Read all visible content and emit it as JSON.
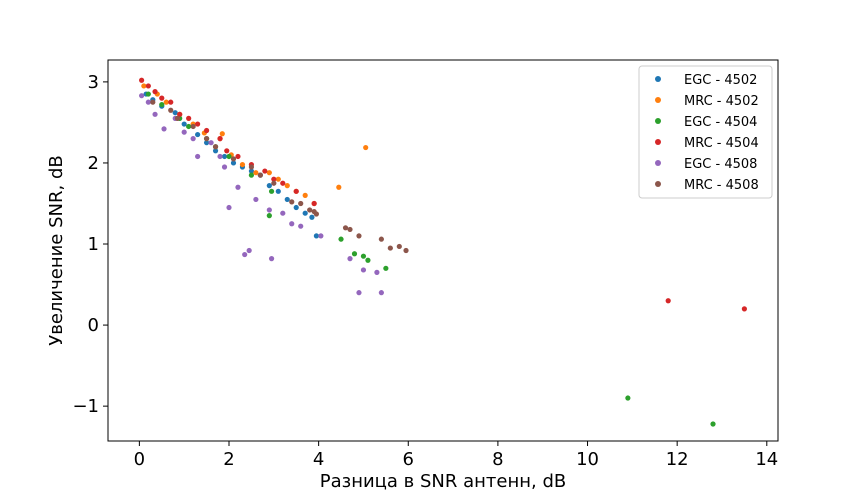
{
  "chart_data": {
    "type": "scatter",
    "title": "",
    "xlabel": "Разница в SNR антенн, dB",
    "ylabel": "Увеличение SNR, dB",
    "xlim": [
      -0.7,
      14.25
    ],
    "ylim": [
      -1.43,
      3.27
    ],
    "xticks": [
      0,
      2,
      4,
      6,
      8,
      10,
      12,
      14
    ],
    "yticks": [
      -1,
      0,
      1,
      2,
      3
    ],
    "grid": false,
    "legend_position": "top-right",
    "series": [
      {
        "name": "EGC - 4502",
        "color": "#1f77b4",
        "points": [
          [
            0.15,
            2.85
          ],
          [
            0.3,
            2.78
          ],
          [
            0.5,
            2.7
          ],
          [
            0.8,
            2.62
          ],
          [
            1.0,
            2.48
          ],
          [
            1.3,
            2.35
          ],
          [
            1.5,
            2.25
          ],
          [
            1.7,
            2.15
          ],
          [
            1.9,
            2.08
          ],
          [
            2.1,
            2.0
          ],
          [
            2.3,
            1.95
          ],
          [
            2.5,
            1.9
          ],
          [
            2.7,
            1.85
          ],
          [
            2.9,
            1.72
          ],
          [
            3.1,
            1.65
          ],
          [
            3.3,
            1.55
          ],
          [
            3.5,
            1.45
          ],
          [
            3.7,
            1.38
          ],
          [
            3.85,
            1.33
          ],
          [
            3.95,
            1.1
          ]
        ]
      },
      {
        "name": "MRC - 4502",
        "color": "#ff7f0e",
        "points": [
          [
            0.1,
            2.95
          ],
          [
            0.4,
            2.85
          ],
          [
            0.6,
            2.75
          ],
          [
            0.9,
            2.6
          ],
          [
            1.2,
            2.48
          ],
          [
            1.45,
            2.37
          ],
          [
            1.8,
            2.3
          ],
          [
            1.85,
            2.36
          ],
          [
            2.05,
            2.1
          ],
          [
            2.3,
            1.98
          ],
          [
            2.6,
            1.88
          ],
          [
            2.9,
            1.88
          ],
          [
            3.1,
            1.8
          ],
          [
            3.3,
            1.72
          ],
          [
            3.5,
            1.65
          ],
          [
            3.7,
            1.6
          ],
          [
            3.9,
            1.5
          ],
          [
            4.45,
            1.7
          ],
          [
            5.05,
            2.19
          ]
        ]
      },
      {
        "name": "EGC - 4504",
        "color": "#2ca02c",
        "points": [
          [
            0.2,
            2.85
          ],
          [
            0.5,
            2.72
          ],
          [
            0.9,
            2.55
          ],
          [
            1.1,
            2.45
          ],
          [
            1.5,
            2.3
          ],
          [
            1.7,
            2.2
          ],
          [
            2.0,
            2.08
          ],
          [
            2.5,
            1.85
          ],
          [
            2.9,
            1.35
          ],
          [
            2.95,
            1.65
          ],
          [
            4.5,
            1.06
          ],
          [
            4.8,
            0.88
          ],
          [
            5.0,
            0.85
          ],
          [
            5.1,
            0.8
          ],
          [
            5.5,
            0.7
          ],
          [
            10.9,
            -0.9
          ],
          [
            12.8,
            -1.22
          ]
        ]
      },
      {
        "name": "MRC - 4504",
        "color": "#d62728",
        "points": [
          [
            0.05,
            3.02
          ],
          [
            0.2,
            2.95
          ],
          [
            0.35,
            2.88
          ],
          [
            0.5,
            2.8
          ],
          [
            0.7,
            2.75
          ],
          [
            0.9,
            2.6
          ],
          [
            1.1,
            2.55
          ],
          [
            1.3,
            2.48
          ],
          [
            1.5,
            2.4
          ],
          [
            1.8,
            2.3
          ],
          [
            1.95,
            2.15
          ],
          [
            2.2,
            2.08
          ],
          [
            2.5,
            1.98
          ],
          [
            2.8,
            1.9
          ],
          [
            3.0,
            1.8
          ],
          [
            3.2,
            1.75
          ],
          [
            3.5,
            1.65
          ],
          [
            3.9,
            1.5
          ],
          [
            11.8,
            0.3
          ],
          [
            13.5,
            0.2
          ]
        ]
      },
      {
        "name": "EGC - 4508",
        "color": "#9467bd",
        "points": [
          [
            0.05,
            2.83
          ],
          [
            0.2,
            2.75
          ],
          [
            0.35,
            2.6
          ],
          [
            0.55,
            2.42
          ],
          [
            0.8,
            2.55
          ],
          [
            1.0,
            2.38
          ],
          [
            1.2,
            2.3
          ],
          [
            1.3,
            2.08
          ],
          [
            1.6,
            2.25
          ],
          [
            1.8,
            2.08
          ],
          [
            1.9,
            1.95
          ],
          [
            2.0,
            1.45
          ],
          [
            2.2,
            1.7
          ],
          [
            2.35,
            0.87
          ],
          [
            2.45,
            0.92
          ],
          [
            2.6,
            1.55
          ],
          [
            2.9,
            1.42
          ],
          [
            2.95,
            0.82
          ],
          [
            3.2,
            1.38
          ],
          [
            3.4,
            1.25
          ],
          [
            3.6,
            1.22
          ],
          [
            4.05,
            1.1
          ],
          [
            4.7,
            0.82
          ],
          [
            4.9,
            0.4
          ],
          [
            5.0,
            0.68
          ],
          [
            5.3,
            0.65
          ],
          [
            5.4,
            0.4
          ]
        ]
      },
      {
        "name": "MRC - 4508",
        "color": "#8c564b",
        "points": [
          [
            0.3,
            2.75
          ],
          [
            0.7,
            2.65
          ],
          [
            0.85,
            2.55
          ],
          [
            1.2,
            2.45
          ],
          [
            1.5,
            2.3
          ],
          [
            1.7,
            2.2
          ],
          [
            2.1,
            2.05
          ],
          [
            2.5,
            1.95
          ],
          [
            2.7,
            1.85
          ],
          [
            3.0,
            1.75
          ],
          [
            3.4,
            1.52
          ],
          [
            3.6,
            1.5
          ],
          [
            3.8,
            1.42
          ],
          [
            3.9,
            1.4
          ],
          [
            3.95,
            1.37
          ],
          [
            4.6,
            1.2
          ],
          [
            4.7,
            1.18
          ],
          [
            4.9,
            1.1
          ],
          [
            5.4,
            1.06
          ],
          [
            5.6,
            0.95
          ],
          [
            5.8,
            0.97
          ],
          [
            5.95,
            0.92
          ]
        ]
      }
    ]
  }
}
